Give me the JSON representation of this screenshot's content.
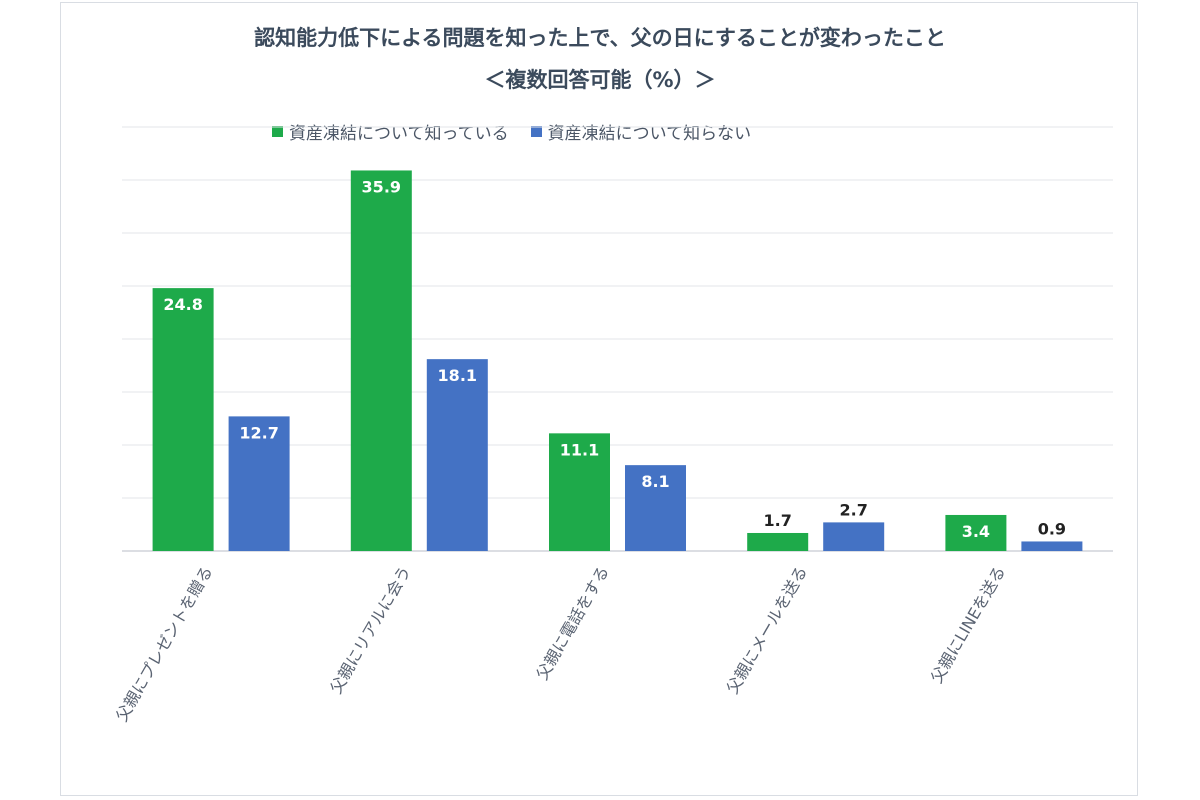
{
  "colors": {
    "known": "#1eaa4a",
    "unknown": "#4472c4",
    "grid": "#e3e6ea",
    "axis": "#d0d4da",
    "title": "#3b4a5c"
  },
  "chart_data": {
    "type": "bar",
    "title": "認知能力低下による問題を知った上で、父の日にすることが変わったこと",
    "subtitle": "＜複数回答可能（%）＞",
    "categories": [
      "父親にプレゼントを贈る",
      "父親にリアルに会う",
      "父親に電話をする",
      "父親にメールを送る",
      "父親にLINEを送る"
    ],
    "series": [
      {
        "name": "資産凍結について知っている",
        "values": [
          24.8,
          35.9,
          11.1,
          1.7,
          3.4
        ]
      },
      {
        "name": "資産凍結について知らない",
        "values": [
          12.7,
          18.1,
          8.1,
          2.7,
          0.9
        ]
      }
    ],
    "ylim": [
      0,
      40
    ],
    "grid": true,
    "legend_position": "top"
  }
}
